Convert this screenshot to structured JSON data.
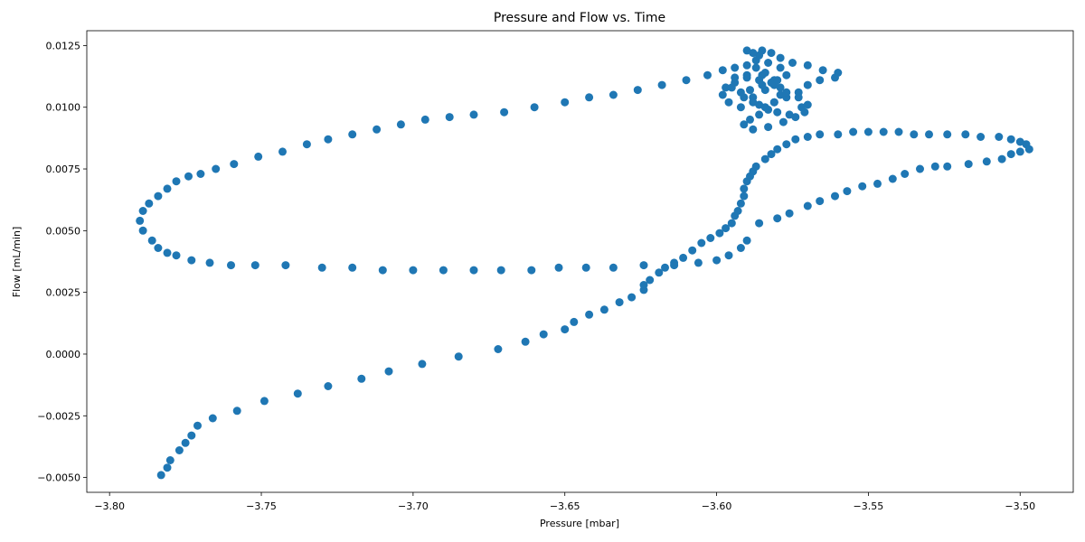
{
  "chart_data": {
    "type": "scatter",
    "title": "Pressure and Flow vs. Time",
    "xlabel": "Pressure [mbar]",
    "ylabel": "Flow [mL/min]",
    "xlim": [
      -3.8075,
      -3.4825
    ],
    "ylim": [
      -0.0056,
      0.0131
    ],
    "grid": false,
    "x_ticks": [
      {
        "value": -3.8,
        "label": "−3.80"
      },
      {
        "value": -3.75,
        "label": "−3.75"
      },
      {
        "value": -3.7,
        "label": "−3.70"
      },
      {
        "value": -3.65,
        "label": "−3.65"
      },
      {
        "value": -3.6,
        "label": "−3.60"
      },
      {
        "value": -3.55,
        "label": "−3.55"
      },
      {
        "value": -3.5,
        "label": "−3.50"
      }
    ],
    "y_ticks": [
      {
        "value": -0.005,
        "label": "−0.0050"
      },
      {
        "value": -0.0025,
        "label": "−0.0025"
      },
      {
        "value": 0.0,
        "label": "0.0000"
      },
      {
        "value": 0.0025,
        "label": "0.0025"
      },
      {
        "value": 0.005,
        "label": "0.0050"
      },
      {
        "value": 0.0075,
        "label": "0.0075"
      },
      {
        "value": 0.01,
        "label": "0.0100"
      },
      {
        "value": 0.0125,
        "label": "0.0125"
      }
    ],
    "color": "#1f77b4",
    "points": [
      [
        -3.783,
        -0.0049
      ],
      [
        -3.781,
        -0.0046
      ],
      [
        -3.78,
        -0.0043
      ],
      [
        -3.777,
        -0.0039
      ],
      [
        -3.775,
        -0.0036
      ],
      [
        -3.773,
        -0.0033
      ],
      [
        -3.771,
        -0.0029
      ],
      [
        -3.766,
        -0.0026
      ],
      [
        -3.758,
        -0.0023
      ],
      [
        -3.749,
        -0.0019
      ],
      [
        -3.738,
        -0.0016
      ],
      [
        -3.728,
        -0.0013
      ],
      [
        -3.717,
        -0.001
      ],
      [
        -3.708,
        -0.0007
      ],
      [
        -3.697,
        -0.0004
      ],
      [
        -3.685,
        -0.0001
      ],
      [
        -3.672,
        0.0002
      ],
      [
        -3.663,
        0.0005
      ],
      [
        -3.657,
        0.0008
      ],
      [
        -3.65,
        0.001
      ],
      [
        -3.647,
        0.0013
      ],
      [
        -3.642,
        0.0016
      ],
      [
        -3.637,
        0.0018
      ],
      [
        -3.632,
        0.0021
      ],
      [
        -3.628,
        0.0023
      ],
      [
        -3.624,
        0.0026
      ],
      [
        -3.624,
        0.0028
      ],
      [
        -3.622,
        0.003
      ],
      [
        -3.619,
        0.0033
      ],
      [
        -3.617,
        0.0035
      ],
      [
        -3.614,
        0.0037
      ],
      [
        -3.611,
        0.0039
      ],
      [
        -3.608,
        0.0042
      ],
      [
        -3.605,
        0.0045
      ],
      [
        -3.602,
        0.0047
      ],
      [
        -3.599,
        0.0049
      ],
      [
        -3.597,
        0.0051
      ],
      [
        -3.595,
        0.0053
      ],
      [
        -3.594,
        0.0056
      ],
      [
        -3.593,
        0.0058
      ],
      [
        -3.592,
        0.0061
      ],
      [
        -3.591,
        0.0064
      ],
      [
        -3.591,
        0.0067
      ],
      [
        -3.59,
        0.007
      ],
      [
        -3.589,
        0.0072
      ],
      [
        -3.588,
        0.0074
      ],
      [
        -3.587,
        0.0076
      ],
      [
        -3.584,
        0.0079
      ],
      [
        -3.582,
        0.0081
      ],
      [
        -3.58,
        0.0083
      ],
      [
        -3.577,
        0.0085
      ],
      [
        -3.574,
        0.0087
      ],
      [
        -3.57,
        0.0088
      ],
      [
        -3.566,
        0.0089
      ],
      [
        -3.56,
        0.0089
      ],
      [
        -3.555,
        0.009
      ],
      [
        -3.55,
        0.009
      ],
      [
        -3.545,
        0.009
      ],
      [
        -3.54,
        0.009
      ],
      [
        -3.535,
        0.0089
      ],
      [
        -3.53,
        0.0089
      ],
      [
        -3.524,
        0.0089
      ],
      [
        -3.518,
        0.0089
      ],
      [
        -3.513,
        0.0088
      ],
      [
        -3.507,
        0.0088
      ],
      [
        -3.503,
        0.0087
      ],
      [
        -3.5,
        0.0086
      ],
      [
        -3.498,
        0.0085
      ],
      [
        -3.497,
        0.0083
      ],
      [
        -3.5,
        0.0082
      ],
      [
        -3.503,
        0.0081
      ],
      [
        -3.506,
        0.0079
      ],
      [
        -3.511,
        0.0078
      ],
      [
        -3.517,
        0.0077
      ],
      [
        -3.524,
        0.0076
      ],
      [
        -3.528,
        0.0076
      ],
      [
        -3.533,
        0.0075
      ],
      [
        -3.538,
        0.0073
      ],
      [
        -3.542,
        0.0071
      ],
      [
        -3.547,
        0.0069
      ],
      [
        -3.552,
        0.0068
      ],
      [
        -3.557,
        0.0066
      ],
      [
        -3.561,
        0.0064
      ],
      [
        -3.566,
        0.0062
      ],
      [
        -3.57,
        0.006
      ],
      [
        -3.576,
        0.0057
      ],
      [
        -3.58,
        0.0055
      ],
      [
        -3.586,
        0.0053
      ],
      [
        -3.59,
        0.0046
      ],
      [
        -3.592,
        0.0043
      ],
      [
        -3.596,
        0.004
      ],
      [
        -3.6,
        0.0038
      ],
      [
        -3.606,
        0.0037
      ],
      [
        -3.614,
        0.0036
      ],
      [
        -3.624,
        0.0036
      ],
      [
        -3.634,
        0.0035
      ],
      [
        -3.643,
        0.0035
      ],
      [
        -3.652,
        0.0035
      ],
      [
        -3.661,
        0.0034
      ],
      [
        -3.671,
        0.0034
      ],
      [
        -3.68,
        0.0034
      ],
      [
        -3.69,
        0.0034
      ],
      [
        -3.7,
        0.0034
      ],
      [
        -3.71,
        0.0034
      ],
      [
        -3.72,
        0.0035
      ],
      [
        -3.73,
        0.0035
      ],
      [
        -3.742,
        0.0036
      ],
      [
        -3.752,
        0.0036
      ],
      [
        -3.76,
        0.0036
      ],
      [
        -3.767,
        0.0037
      ],
      [
        -3.773,
        0.0038
      ],
      [
        -3.778,
        0.004
      ],
      [
        -3.781,
        0.0041
      ],
      [
        -3.784,
        0.0043
      ],
      [
        -3.786,
        0.0046
      ],
      [
        -3.789,
        0.005
      ],
      [
        -3.79,
        0.0054
      ],
      [
        -3.789,
        0.0058
      ],
      [
        -3.787,
        0.0061
      ],
      [
        -3.784,
        0.0064
      ],
      [
        -3.781,
        0.0067
      ],
      [
        -3.778,
        0.007
      ],
      [
        -3.774,
        0.0072
      ],
      [
        -3.77,
        0.0073
      ],
      [
        -3.765,
        0.0075
      ],
      [
        -3.759,
        0.0077
      ],
      [
        -3.751,
        0.008
      ],
      [
        -3.743,
        0.0082
      ],
      [
        -3.735,
        0.0085
      ],
      [
        -3.728,
        0.0087
      ],
      [
        -3.72,
        0.0089
      ],
      [
        -3.712,
        0.0091
      ],
      [
        -3.704,
        0.0093
      ],
      [
        -3.696,
        0.0095
      ],
      [
        -3.688,
        0.0096
      ],
      [
        -3.68,
        0.0097
      ],
      [
        -3.67,
        0.0098
      ],
      [
        -3.66,
        0.01
      ],
      [
        -3.65,
        0.0102
      ],
      [
        -3.642,
        0.0104
      ],
      [
        -3.634,
        0.0105
      ],
      [
        -3.626,
        0.0107
      ],
      [
        -3.618,
        0.0109
      ],
      [
        -3.61,
        0.0111
      ],
      [
        -3.603,
        0.0113
      ],
      [
        -3.598,
        0.0115
      ],
      [
        -3.594,
        0.0116
      ],
      [
        -3.59,
        0.0117
      ],
      [
        -3.587,
        0.0119
      ],
      [
        -3.586,
        0.0121
      ],
      [
        -3.588,
        0.0122
      ],
      [
        -3.59,
        0.0123
      ],
      [
        -3.585,
        0.0123
      ],
      [
        -3.582,
        0.0122
      ],
      [
        -3.579,
        0.012
      ],
      [
        -3.575,
        0.0118
      ],
      [
        -3.57,
        0.0117
      ],
      [
        -3.565,
        0.0115
      ],
      [
        -3.56,
        0.0114
      ],
      [
        -3.561,
        0.0112
      ],
      [
        -3.566,
        0.0111
      ],
      [
        -3.57,
        0.0109
      ],
      [
        -3.573,
        0.0106
      ],
      [
        -3.577,
        0.0104
      ],
      [
        -3.581,
        0.0102
      ],
      [
        -3.586,
        0.0101
      ],
      [
        -3.592,
        0.01
      ],
      [
        -3.596,
        0.0102
      ],
      [
        -3.598,
        0.0105
      ],
      [
        -3.597,
        0.0108
      ],
      [
        -3.594,
        0.011
      ],
      [
        -3.59,
        0.0112
      ],
      [
        -3.585,
        0.0113
      ],
      [
        -3.581,
        0.0111
      ],
      [
        -3.579,
        0.0108
      ],
      [
        -3.579,
        0.0105
      ],
      [
        -3.581,
        0.0102
      ],
      [
        -3.583,
        0.0099
      ],
      [
        -3.586,
        0.0097
      ],
      [
        -3.589,
        0.0095
      ],
      [
        -3.591,
        0.0093
      ],
      [
        -3.588,
        0.0091
      ],
      [
        -3.583,
        0.0092
      ],
      [
        -3.578,
        0.0094
      ],
      [
        -3.574,
        0.0096
      ],
      [
        -3.571,
        0.0098
      ],
      [
        -3.57,
        0.0101
      ],
      [
        -3.573,
        0.0104
      ],
      [
        -3.577,
        0.0106
      ],
      [
        -3.581,
        0.0109
      ],
      [
        -3.586,
        0.0111
      ],
      [
        -3.59,
        0.0113
      ],
      [
        -3.594,
        0.0112
      ],
      [
        -3.595,
        0.0108
      ],
      [
        -3.592,
        0.0106
      ],
      [
        -3.588,
        0.0104
      ],
      [
        -3.584,
        0.0107
      ],
      [
        -3.582,
        0.011
      ],
      [
        -3.584,
        0.0114
      ],
      [
        -3.587,
        0.0116
      ],
      [
        -3.583,
        0.0118
      ],
      [
        -3.579,
        0.0116
      ],
      [
        -3.577,
        0.0113
      ],
      [
        -3.58,
        0.0111
      ],
      [
        -3.585,
        0.0109
      ],
      [
        -3.589,
        0.0107
      ],
      [
        -3.591,
        0.0104
      ],
      [
        -3.588,
        0.0102
      ],
      [
        -3.584,
        0.01
      ],
      [
        -3.58,
        0.0098
      ],
      [
        -3.576,
        0.0097
      ],
      [
        -3.572,
        0.01
      ]
    ]
  }
}
